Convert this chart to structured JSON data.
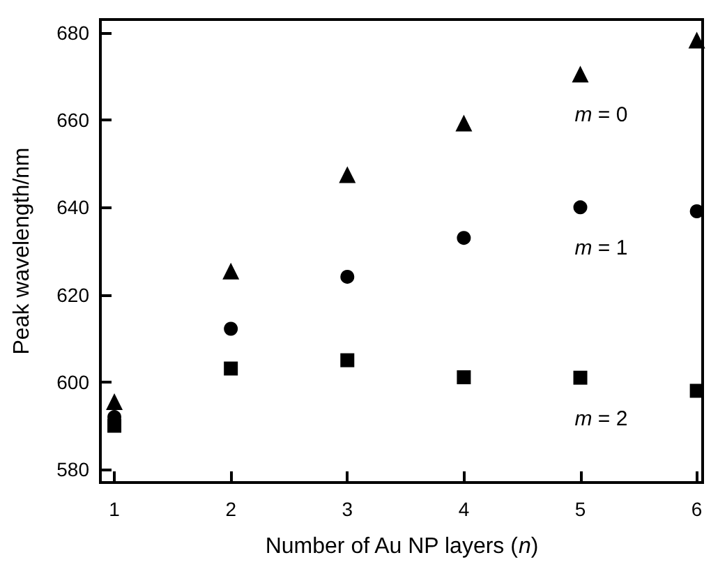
{
  "chart_data": {
    "type": "scatter",
    "xlabel": "Number of Au NP layers (n)",
    "ylabel": "Peak wavelength/nm",
    "xlim": [
      0.88,
      6.05
    ],
    "xticks": [
      1,
      2,
      3,
      4,
      5,
      6
    ],
    "ylim": [
      577,
      683
    ],
    "yticks": [
      580,
      600,
      620,
      640,
      660,
      680
    ],
    "grid": false,
    "x": [
      1,
      2,
      3,
      4,
      5,
      6
    ],
    "series": [
      {
        "color": "#000000",
        "marker": "triangle",
        "values": [
          595.5,
          625.4,
          647.5,
          659.3,
          670.5,
          678.3
        ]
      },
      {
        "color": "#000000",
        "marker": "circle",
        "values": [
          592,
          612.2,
          624.1,
          633,
          640,
          639.1
        ]
      },
      {
        "color": "#000000",
        "marker": "square",
        "values": [
          590,
          603.1,
          605,
          601.1,
          601,
          598
        ]
      }
    ],
    "annotations": [
      "m = 0",
      "m = 1",
      "m = 2"
    ]
  }
}
